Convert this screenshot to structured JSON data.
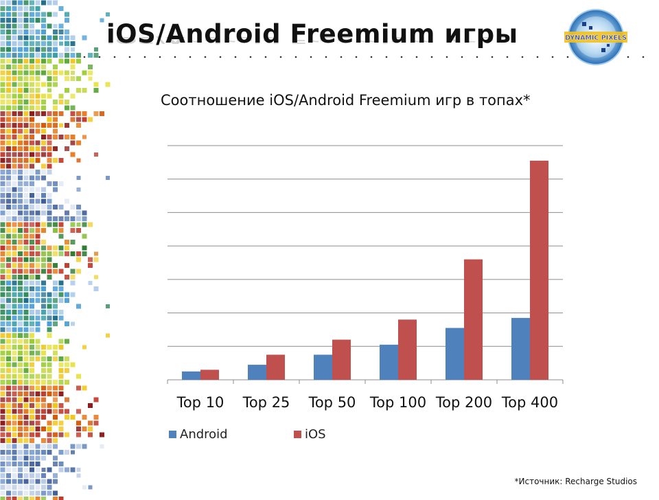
{
  "slide": {
    "title": "iOS/Android Freemium игры",
    "footnote": "*Источник: Recharge Studios",
    "logo_text": "DYNAMIC PIXELS"
  },
  "colors": {
    "android": "#4f81bd",
    "ios": "#c0504d",
    "grid": "#8c8c8c"
  },
  "chart_data": {
    "type": "bar",
    "title": "Соотношение iOS/Android Freemium игр в топах*",
    "categories": [
      "Top 10",
      "Top 25",
      "Top 50",
      "Top 100",
      "Top 200",
      "Top 400"
    ],
    "series": [
      {
        "name": "Android",
        "values": [
          2.5,
          4.5,
          7.5,
          10.5,
          15.5,
          18.5
        ]
      },
      {
        "name": "iOS",
        "values": [
          3,
          7.5,
          12,
          18,
          36,
          65.5
        ]
      }
    ],
    "ylim": [
      0,
      70
    ],
    "gridlines": true,
    "y_tick_labels_shown": false,
    "legend_position": "bottom-left"
  }
}
